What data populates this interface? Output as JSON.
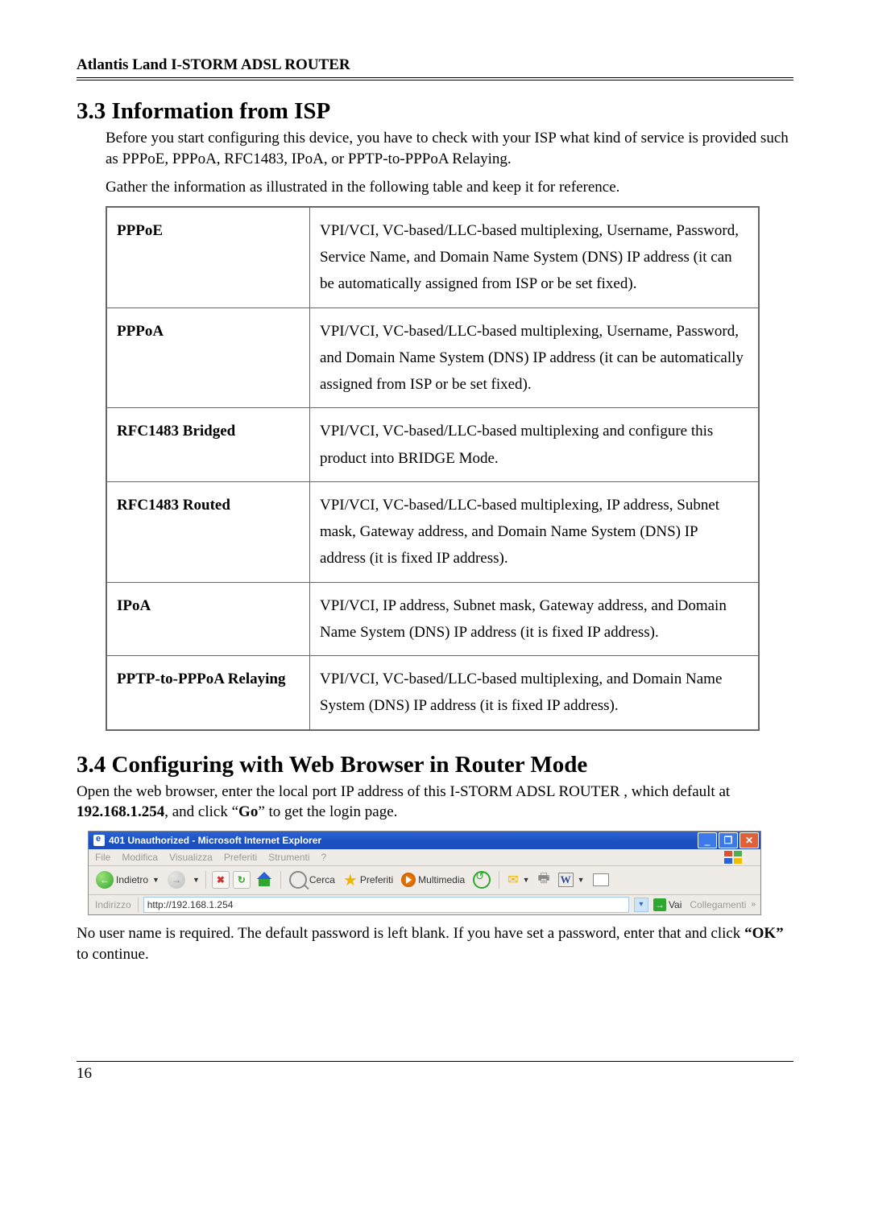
{
  "header": "Atlantis Land I-STORM ADSL ROUTER",
  "section33": {
    "title": "3.3 Information from ISP",
    "p1": "Before you start configuring this device, you have to check with your ISP what kind of service is provided such as PPPoE, PPPoA, RFC1483, IPoA, or PPTP-to-PPPoA Relaying.",
    "p2": "Gather the information as illustrated in the following table and keep it for reference."
  },
  "table": {
    "rows": [
      {
        "label": "PPPoE",
        "desc": "VPI/VCI, VC-based/LLC-based multiplexing, Username, Password, Service Name, and Domain Name System (DNS) IP address (it can be automatically assigned from ISP or be set fixed)."
      },
      {
        "label": "PPPoA",
        "desc": "VPI/VCI, VC-based/LLC-based multiplexing, Username, Password, and Domain Name System (DNS) IP address (it can be automatically assigned from ISP or be set fixed)."
      },
      {
        "label": "RFC1483 Bridged",
        "desc": "VPI/VCI, VC-based/LLC-based multiplexing and configure this product into BRIDGE Mode."
      },
      {
        "label": "RFC1483 Routed",
        "desc": "VPI/VCI, VC-based/LLC-based multiplexing, IP address, Subnet mask, Gateway address, and Domain Name System (DNS) IP address (it is fixed IP address)."
      },
      {
        "label": "IPoA",
        "desc": "VPI/VCI, IP address, Subnet mask, Gateway address, and Domain Name System (DNS) IP address (it is fixed IP address)."
      },
      {
        "label": "PPTP-to-PPPoA Relaying",
        "desc": "VPI/VCI, VC-based/LLC-based multiplexing, and Domain Name System (DNS) IP address (it is fixed IP address)."
      }
    ]
  },
  "section34": {
    "title": "3.4 Configuring with Web Browser in Router Mode",
    "p1a": "Open the web browser, enter the local port IP address of this I-STORM ADSL ROUTER , which default at ",
    "p1b": "192.168.1.254",
    "p1c": ", and click “",
    "p1d": "Go",
    "p1e": "” to get the login page."
  },
  "ie": {
    "title": "401 Unauthorized - Microsoft Internet Explorer",
    "menu": {
      "file": "File",
      "modifica": "Modifica",
      "visualizza": "Visualizza",
      "preferiti": "Preferiti",
      "strumenti": "Strumenti",
      "help": "?"
    },
    "toolbar": {
      "indietro": "Indietro",
      "cerca": "Cerca",
      "preferiti": "Preferiti",
      "multimedia": "Multimedia"
    },
    "addr_label": "Indirizzo",
    "url": "http://192.168.1.254",
    "go": "Vai",
    "links": "Collegamenti"
  },
  "after_ie_a": "No user name is required. The default password is left blank. If you have set a password, enter that and click ",
  "after_ie_b": "“OK”",
  "after_ie_c": " to continue.",
  "page_number": "16"
}
